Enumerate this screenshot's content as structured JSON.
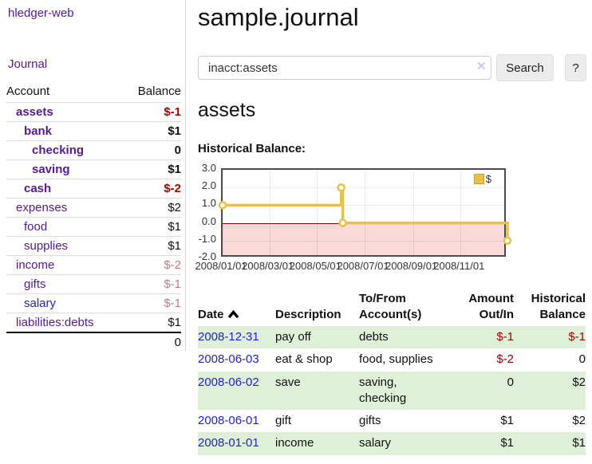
{
  "app_title": "hledger-web",
  "sidebar": {
    "journal_link": "Journal",
    "accounts": {
      "header_account": "Account",
      "header_balance": "Balance",
      "rows": [
        {
          "name": "assets",
          "balance": "$-1",
          "level": 1,
          "bold": true,
          "amount_tone": "neg-strong",
          "name_tone": "purple"
        },
        {
          "name": "bank",
          "balance": "$1",
          "level": 2,
          "bold": true,
          "amount_tone": "normal",
          "name_tone": "purple"
        },
        {
          "name": "checking",
          "balance": "0",
          "level": 3,
          "bold": true,
          "amount_tone": "normal",
          "name_tone": "purple"
        },
        {
          "name": "saving",
          "balance": "$1",
          "level": 3,
          "bold": true,
          "amount_tone": "normal",
          "name_tone": "purple"
        },
        {
          "name": "cash",
          "balance": "$-2",
          "level": 2,
          "bold": true,
          "amount_tone": "neg-strong",
          "name_tone": "purple"
        },
        {
          "name": "expenses",
          "balance": "$2",
          "level": 1,
          "bold": false,
          "amount_tone": "normal",
          "name_tone": "purple"
        },
        {
          "name": "food",
          "balance": "$1",
          "level": 2,
          "bold": false,
          "amount_tone": "normal",
          "name_tone": "purple"
        },
        {
          "name": "supplies",
          "balance": "$1",
          "level": 2,
          "bold": false,
          "amount_tone": "normal",
          "name_tone": "purple"
        },
        {
          "name": "income",
          "balance": "$-2",
          "level": 1,
          "bold": false,
          "amount_tone": "neg-soft",
          "name_tone": "purple"
        },
        {
          "name": "gifts",
          "balance": "$-1",
          "level": 2,
          "bold": false,
          "amount_tone": "neg-soft",
          "name_tone": "purple"
        },
        {
          "name": "salary",
          "balance": "$-1",
          "level": 2,
          "bold": false,
          "amount_tone": "neg-soft",
          "name_tone": "blue"
        },
        {
          "name": "liabilities:debts",
          "balance": "$1",
          "level": 1,
          "bold": false,
          "amount_tone": "normal",
          "name_tone": "purple"
        }
      ],
      "total": "0"
    }
  },
  "main": {
    "page_title": "sample.journal",
    "search": {
      "value": "inacct:assets",
      "clear_icon": "✕",
      "search_button": "Search",
      "help_button": "?"
    },
    "account_heading": "assets",
    "chart_title": "Historical Balance:",
    "chart_data": {
      "type": "line",
      "step": true,
      "title": "Historical Balance",
      "legend": [
        {
          "label": "$",
          "color": "#e8c14a"
        }
      ],
      "legend_position": "top-right",
      "grid": true,
      "ylim": [
        -2,
        3
      ],
      "yticks": [
        {
          "label": "3.0",
          "value": 3
        },
        {
          "label": "2.0",
          "value": 2
        },
        {
          "label": "1.0",
          "value": 1
        },
        {
          "label": "0.0",
          "value": 0
        },
        {
          "label": "-1.0",
          "value": -1
        },
        {
          "label": "-2.0",
          "value": -2
        }
      ],
      "xticks": [
        {
          "label": "2008/01/01",
          "day": 0
        },
        {
          "label": "2008/03/01",
          "day": 60
        },
        {
          "label": "2008/05/01",
          "day": 121
        },
        {
          "label": "2008/07/01",
          "day": 182
        },
        {
          "label": "2008/09/01",
          "day": 244
        },
        {
          "label": "2008/11/01",
          "day": 305
        }
      ],
      "x_span_days": 365,
      "series": [
        {
          "name": "$",
          "color": "#e8c14a",
          "points": [
            {
              "date": "2008/01/01",
              "day": 0,
              "value": 1
            },
            {
              "date": "2008/06/01",
              "day": 152,
              "value": 2
            },
            {
              "date": "2008/06/03",
              "day": 154,
              "value": 0
            },
            {
              "date": "2008/12/31",
              "day": 365,
              "value": -1
            }
          ]
        }
      ],
      "negative_region_color": "#f9d9d9",
      "zero_line_color": "#8b0000"
    },
    "register": {
      "headers": {
        "date": "Date",
        "description": "Description",
        "tofrom": "To/From Account(s)",
        "amount": "Amount Out/In",
        "balance": "Historical Balance"
      },
      "sort_icon": "chevron-up",
      "rows": [
        {
          "date": "2008-12-31",
          "description": "pay off",
          "accounts": [
            "debts"
          ],
          "amount": "$-1",
          "amount_neg": true,
          "balance": "$-1",
          "balance_neg": true,
          "highlight": true
        },
        {
          "date": "2008-06-03",
          "description": "eat & shop",
          "accounts": [
            "food, supplies"
          ],
          "amount": "$-2",
          "amount_neg": true,
          "balance": "0",
          "balance_neg": false,
          "highlight": false
        },
        {
          "date": "2008-06-02",
          "description": "save",
          "accounts": [
            "saving,",
            "checking"
          ],
          "amount": "0",
          "amount_neg": false,
          "balance": "$2",
          "balance_neg": false,
          "highlight": true
        },
        {
          "date": "2008-06-01",
          "description": "gift",
          "accounts": [
            "gifts"
          ],
          "amount": "$1",
          "amount_neg": false,
          "balance": "$2",
          "balance_neg": false,
          "highlight": false
        },
        {
          "date": "2008-01-01",
          "description": "income",
          "accounts": [
            "salary"
          ],
          "amount": "$1",
          "amount_neg": false,
          "balance": "$1",
          "balance_neg": false,
          "highlight": true
        }
      ]
    }
  },
  "colors": {
    "link_purple": "#551a8b",
    "link_blue": "#2222cc",
    "negative_strong": "#a40000",
    "negative_soft": "#bd7a7a",
    "row_highlight": "#dff0d8",
    "chart_line": "#e8c14a",
    "chart_negative_fill": "#f9d9d9",
    "chart_zero_line": "#8b0000",
    "button_bg": "#ececec"
  }
}
